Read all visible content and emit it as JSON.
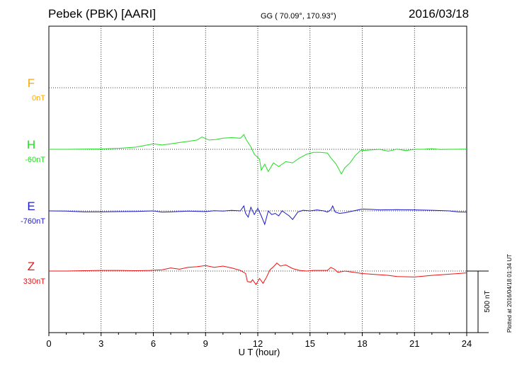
{
  "header": {
    "title": "Pebek (PBK)  [AARI]",
    "coords": "GG ( 70.09°, 170.93°)",
    "date": "2016/03/18"
  },
  "footer": {
    "plotted": "Plotted at 2016/04/18 01:34 UT"
  },
  "chart_data": {
    "type": "line",
    "xlabel": "U T (hour)",
    "xlim": [
      0,
      24
    ],
    "xticks": [
      "0",
      "3",
      "6",
      "9",
      "12",
      "15",
      "18",
      "21",
      "24"
    ],
    "grid": true,
    "scale_bar": {
      "label": "500 nT",
      "value_nT": 500
    },
    "series": [
      {
        "name": "F",
        "offset": "0nT",
        "color": "#ffa500",
        "baseline_nT": 0,
        "points": []
      },
      {
        "name": "H",
        "offset": "-60nT",
        "color": "#22dd22",
        "baseline_nT": -60,
        "points": [
          [
            0,
            -60
          ],
          [
            1,
            -60
          ],
          [
            2,
            -58
          ],
          [
            3,
            -57
          ],
          [
            4,
            -52
          ],
          [
            5,
            -42
          ],
          [
            6,
            -15
          ],
          [
            6.5,
            -25
          ],
          [
            7,
            -15
          ],
          [
            7.5,
            -5
          ],
          [
            8,
            5
          ],
          [
            8.5,
            15
          ],
          [
            8.8,
            40
          ],
          [
            9.2,
            15
          ],
          [
            9.6,
            20
          ],
          [
            10,
            30
          ],
          [
            10.5,
            35
          ],
          [
            11,
            30
          ],
          [
            11.2,
            60
          ],
          [
            11.35,
            15
          ],
          [
            11.6,
            -40
          ],
          [
            11.8,
            -100
          ],
          [
            12.1,
            -140
          ],
          [
            12.2,
            -230
          ],
          [
            12.4,
            -180
          ],
          [
            12.6,
            -240
          ],
          [
            12.9,
            -170
          ],
          [
            13.2,
            -200
          ],
          [
            13.6,
            -160
          ],
          [
            14,
            -170
          ],
          [
            14.4,
            -130
          ],
          [
            14.8,
            -100
          ],
          [
            15.2,
            -85
          ],
          [
            15.6,
            -85
          ],
          [
            16,
            -90
          ],
          [
            16.2,
            -130
          ],
          [
            16.5,
            -180
          ],
          [
            16.8,
            -260
          ],
          [
            17,
            -210
          ],
          [
            17.3,
            -170
          ],
          [
            17.6,
            -110
          ],
          [
            17.9,
            -70
          ],
          [
            18.5,
            -65
          ],
          [
            19,
            -60
          ],
          [
            19.5,
            -75
          ],
          [
            20,
            -58
          ],
          [
            20.5,
            -70
          ],
          [
            21,
            -60
          ],
          [
            21.5,
            -60
          ],
          [
            22,
            -55
          ],
          [
            22.5,
            -62
          ],
          [
            23,
            -60
          ],
          [
            24,
            -58
          ]
        ]
      },
      {
        "name": "E",
        "offset": "-760nT",
        "color": "#1a1acc",
        "baseline_nT": -760,
        "points": [
          [
            0,
            -760
          ],
          [
            1,
            -762
          ],
          [
            2,
            -768
          ],
          [
            3,
            -768
          ],
          [
            4,
            -766
          ],
          [
            5,
            -764
          ],
          [
            6,
            -760
          ],
          [
            6.5,
            -770
          ],
          [
            7,
            -768
          ],
          [
            8,
            -762
          ],
          [
            9,
            -766
          ],
          [
            9.5,
            -758
          ],
          [
            10,
            -762
          ],
          [
            10.5,
            -756
          ],
          [
            11,
            -760
          ],
          [
            11.2,
            -720
          ],
          [
            11.3,
            -780
          ],
          [
            11.45,
            -810
          ],
          [
            11.6,
            -730
          ],
          [
            11.8,
            -790
          ],
          [
            12,
            -740
          ],
          [
            12.2,
            -800
          ],
          [
            12.4,
            -870
          ],
          [
            12.6,
            -760
          ],
          [
            12.8,
            -790
          ],
          [
            13,
            -780
          ],
          [
            13.2,
            -800
          ],
          [
            13.4,
            -760
          ],
          [
            13.6,
            -780
          ],
          [
            13.8,
            -800
          ],
          [
            14,
            -830
          ],
          [
            14.3,
            -770
          ],
          [
            14.6,
            -755
          ],
          [
            15,
            -760
          ],
          [
            15.4,
            -752
          ],
          [
            15.8,
            -760
          ],
          [
            16,
            -770
          ],
          [
            16.2,
            -750
          ],
          [
            16.3,
            -720
          ],
          [
            16.45,
            -770
          ],
          [
            16.7,
            -780
          ],
          [
            17,
            -775
          ],
          [
            17.5,
            -760
          ],
          [
            18,
            -745
          ],
          [
            18.5,
            -748
          ],
          [
            19,
            -752
          ],
          [
            20,
            -750
          ],
          [
            21,
            -752
          ],
          [
            22,
            -755
          ],
          [
            23,
            -760
          ],
          [
            23.5,
            -768
          ],
          [
            24,
            -770
          ]
        ]
      },
      {
        "name": "Z",
        "offset": "330nT",
        "color": "#ee1111",
        "baseline_nT": 330,
        "points": [
          [
            0,
            330
          ],
          [
            1,
            330
          ],
          [
            2,
            333
          ],
          [
            3,
            335
          ],
          [
            4,
            335
          ],
          [
            5,
            333
          ],
          [
            5.8,
            335
          ],
          [
            6.5,
            340
          ],
          [
            7,
            355
          ],
          [
            7.5,
            345
          ],
          [
            8,
            360
          ],
          [
            8.5,
            365
          ],
          [
            9,
            375
          ],
          [
            9.5,
            360
          ],
          [
            10,
            370
          ],
          [
            10.5,
            355
          ],
          [
            11,
            335
          ],
          [
            11.3,
            310
          ],
          [
            11.4,
            245
          ],
          [
            11.6,
            240
          ],
          [
            11.7,
            260
          ],
          [
            11.9,
            220
          ],
          [
            12.1,
            270
          ],
          [
            12.3,
            230
          ],
          [
            12.5,
            280
          ],
          [
            12.7,
            340
          ],
          [
            12.9,
            365
          ],
          [
            13.1,
            395
          ],
          [
            13.3,
            370
          ],
          [
            13.6,
            380
          ],
          [
            14,
            350
          ],
          [
            14.4,
            335
          ],
          [
            14.8,
            330
          ],
          [
            15.2,
            335
          ],
          [
            15.6,
            335
          ],
          [
            16,
            335
          ],
          [
            16.2,
            360
          ],
          [
            16.4,
            345
          ],
          [
            16.6,
            320
          ],
          [
            17,
            330
          ],
          [
            17.5,
            320
          ],
          [
            18,
            310
          ],
          [
            19,
            300
          ],
          [
            19.5,
            295
          ],
          [
            20,
            285
          ],
          [
            21,
            282
          ],
          [
            22,
            295
          ],
          [
            23,
            305
          ],
          [
            24,
            315
          ]
        ]
      }
    ]
  }
}
